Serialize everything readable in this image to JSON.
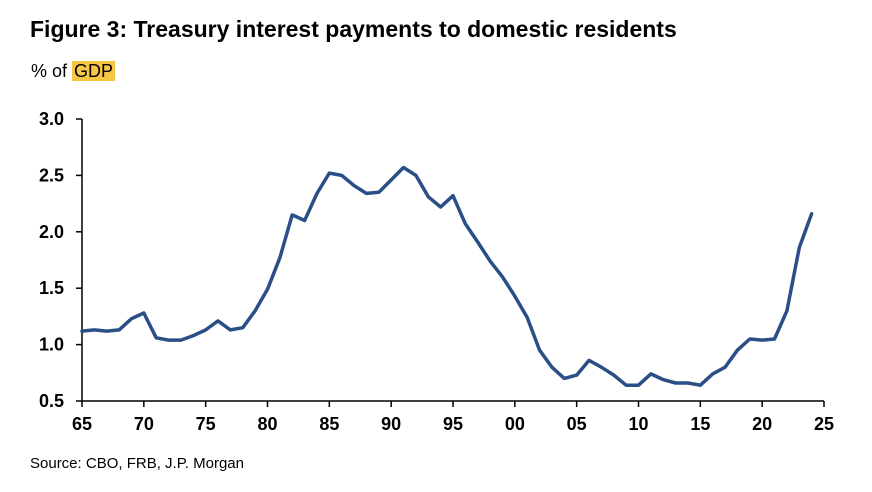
{
  "title": "Figure 3: Treasury interest payments to domestic residents",
  "subtitle": {
    "prefix": "% of",
    "highlight": "GDP"
  },
  "source": "Source: CBO, FRB, J.P. Morgan",
  "colors": {
    "line": "#2a4f86",
    "highlight": "#f6c744",
    "axis": "#000000"
  },
  "chart_data": {
    "type": "line",
    "title": "Figure 3: Treasury interest payments to domestic residents",
    "ylabel": "% of GDP",
    "xlabel": "",
    "grid": false,
    "xlim": [
      1965,
      2025
    ],
    "ylim": [
      0.5,
      3.0
    ],
    "yticks": [
      "3.0",
      "2.5",
      "2.0",
      "1.5",
      "1.0",
      "0.5"
    ],
    "ytick_values": [
      3.0,
      2.5,
      2.0,
      1.5,
      1.0,
      0.5
    ],
    "xticks": [
      "65",
      "70",
      "75",
      "80",
      "85",
      "90",
      "95",
      "00",
      "05",
      "10",
      "15",
      "20",
      "25"
    ],
    "xtick_values": [
      1965,
      1970,
      1975,
      1980,
      1985,
      1990,
      1995,
      2000,
      2005,
      2010,
      2015,
      2020,
      2025
    ],
    "series": [
      {
        "x": [
          1965,
          1966,
          1967,
          1968,
          1969,
          1970,
          1971,
          1972,
          1973,
          1974,
          1975,
          1976,
          1977,
          1978,
          1979,
          1980,
          1981,
          1982,
          1983,
          1984,
          1985,
          1986,
          1987,
          1988,
          1989,
          1990,
          1991,
          1992,
          1993,
          1994,
          1995,
          1996,
          1997,
          1998,
          1999,
          2000,
          2001,
          2002,
          2003,
          2004,
          2005,
          2006,
          2007,
          2008,
          2009,
          2010,
          2011,
          2012,
          2013,
          2014,
          2015,
          2016,
          2017,
          2018,
          2019,
          2020,
          2021,
          2022,
          2023,
          2024
        ],
        "values": [
          1.12,
          1.13,
          1.12,
          1.13,
          1.23,
          1.28,
          1.06,
          1.04,
          1.04,
          1.08,
          1.13,
          1.21,
          1.13,
          1.15,
          1.3,
          1.49,
          1.77,
          2.15,
          2.1,
          2.34,
          2.52,
          2.5,
          2.41,
          2.34,
          2.35,
          2.46,
          2.57,
          2.5,
          2.31,
          2.22,
          2.32,
          2.07,
          1.91,
          1.74,
          1.6,
          1.43,
          1.24,
          0.95,
          0.8,
          0.7,
          0.73,
          0.86,
          0.8,
          0.73,
          0.64,
          0.64,
          0.74,
          0.69,
          0.66,
          0.66,
          0.64,
          0.74,
          0.8,
          0.95,
          1.05,
          1.04,
          1.05,
          1.3,
          1.86,
          2.16
        ]
      }
    ]
  }
}
